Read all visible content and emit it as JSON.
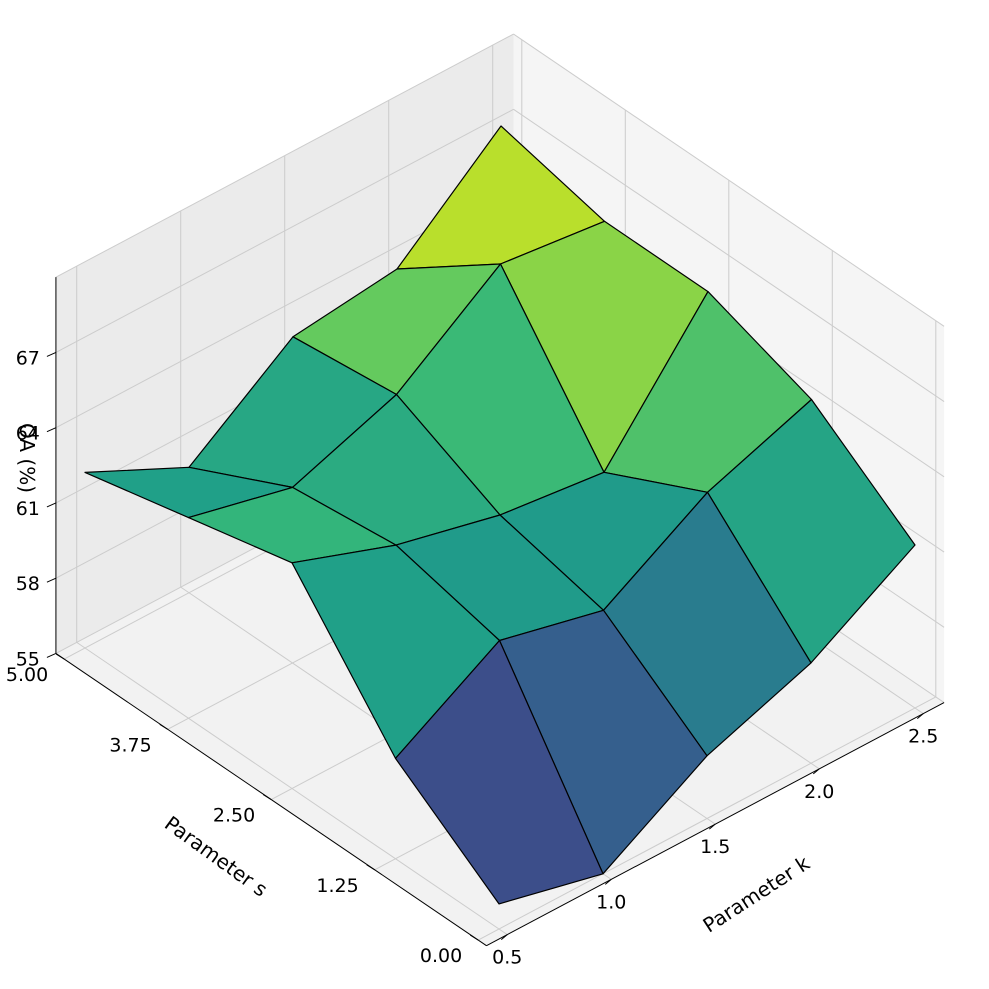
{
  "chart_data": {
    "type": "surface3d",
    "title": "",
    "xlabel": "Parameter k",
    "ylabel": "Parameter s",
    "zlabel": "OA (%)",
    "x_ticks": [
      "0.5",
      "1.0",
      "1.5",
      "2.0",
      "2.5"
    ],
    "y_ticks": [
      "0.00",
      "1.25",
      "2.50",
      "3.75",
      "5.00"
    ],
    "z_ticks": [
      "55",
      "58",
      "61",
      "64",
      "67"
    ],
    "xlim": [
      0.4,
      2.6
    ],
    "ylim": [
      -0.1,
      5.1
    ],
    "zlim": [
      55,
      70
    ],
    "colormap": "viridis",
    "edge_color": "#000000",
    "grid": true,
    "x": [
      0.5,
      1.0,
      1.5,
      2.0,
      2.5
    ],
    "y": [
      0.0,
      1.25,
      2.5,
      3.75,
      5.0
    ],
    "z": [
      [
        56.0,
        55.0,
        57.5,
        59.0,
        61.5
      ],
      [
        59.0,
        61.5,
        60.5,
        63.0,
        64.5
      ],
      [
        64.0,
        62.5,
        61.5,
        61.0,
        66.0
      ],
      [
        63.0,
        62.0,
        63.5,
        66.5,
        66.0
      ],
      [
        62.0,
        60.0,
        63.0,
        63.5,
        67.0
      ]
    ]
  }
}
